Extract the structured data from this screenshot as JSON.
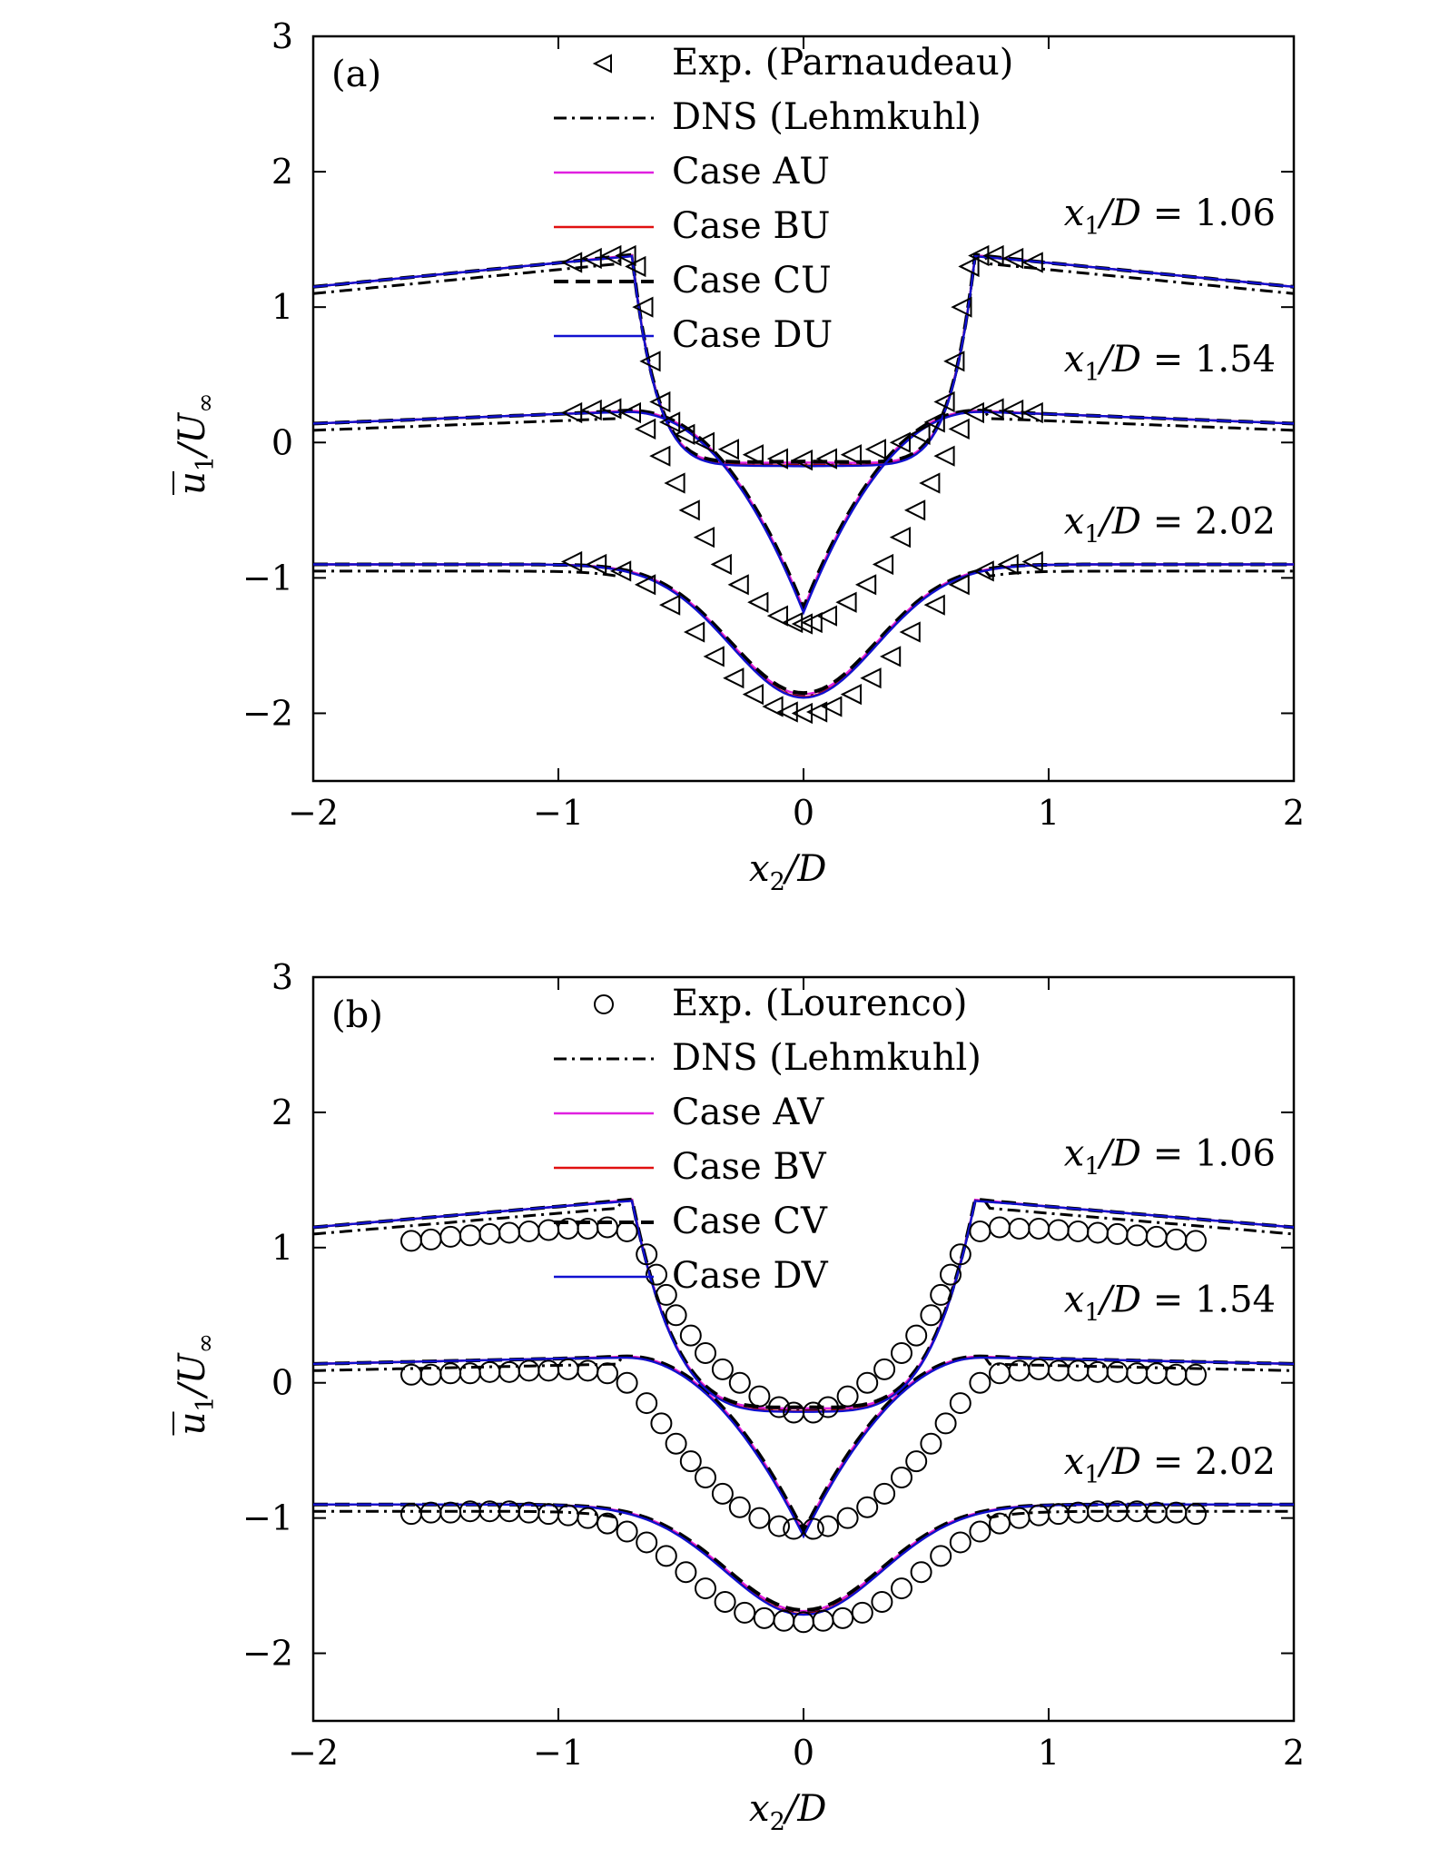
{
  "chart_data": [
    {
      "type": "line",
      "panel_label": "(a)",
      "xlabel": "x2/D",
      "ylabel": "u1/U∞",
      "xlim": [
        -2,
        2
      ],
      "ylim": [
        -2.5,
        3
      ],
      "xticks": [
        -2,
        -1,
        0,
        1,
        2
      ],
      "xtick_labels": [
        "−2",
        "−1",
        "0",
        "1",
        "2"
      ],
      "yticks": [
        -2,
        -1,
        0,
        1,
        2,
        3
      ],
      "ytick_labels": [
        "−2",
        "−1",
        "0",
        "1",
        "2",
        "3"
      ],
      "legend_placement": "top-center",
      "annotations": [
        {
          "text": "x1/D = 1.06",
          "x": 1.9,
          "y": 1.7
        },
        {
          "text": "x1/D = 1.54",
          "x": 1.9,
          "y": 0.62
        },
        {
          "text": "x1/D = 2.02",
          "x": 1.9,
          "y": -0.58
        }
      ],
      "series": [
        {
          "name": "Exp. (Parnaudeau)",
          "style": "triangle-left",
          "color": "#000000",
          "stations": [
            {
              "x1D": 1.06,
              "x": [
                -0.94,
                -0.86,
                -0.78,
                -0.72,
                -0.68,
                -0.65,
                -0.62,
                -0.58,
                -0.54,
                -0.48,
                -0.4,
                -0.3,
                -0.2,
                -0.1,
                0,
                0.1,
                0.2,
                0.3,
                0.4,
                0.48,
                0.54,
                0.58,
                0.62,
                0.65,
                0.68,
                0.72,
                0.78,
                0.86,
                0.94
              ],
              "y": [
                1.33,
                1.36,
                1.38,
                1.38,
                1.3,
                1.0,
                0.6,
                0.3,
                0.15,
                0.06,
                0.0,
                -0.05,
                -0.09,
                -0.12,
                -0.13,
                -0.12,
                -0.09,
                -0.05,
                0.0,
                0.06,
                0.15,
                0.3,
                0.6,
                1.0,
                1.3,
                1.38,
                1.38,
                1.36,
                1.33
              ]
            },
            {
              "x1D": 1.54,
              "x": [
                -0.94,
                -0.86,
                -0.78,
                -0.7,
                -0.64,
                -0.58,
                -0.52,
                -0.46,
                -0.4,
                -0.33,
                -0.26,
                -0.18,
                -0.1,
                -0.04,
                0,
                0.04,
                0.1,
                0.18,
                0.26,
                0.33,
                0.4,
                0.46,
                0.52,
                0.58,
                0.64,
                0.7,
                0.78,
                0.86,
                0.94
              ],
              "y": [
                0.22,
                0.24,
                0.25,
                0.22,
                0.1,
                -0.1,
                -0.3,
                -0.5,
                -0.7,
                -0.9,
                -1.05,
                -1.18,
                -1.28,
                -1.33,
                -1.34,
                -1.33,
                -1.28,
                -1.18,
                -1.05,
                -0.9,
                -0.7,
                -0.5,
                -0.3,
                -0.1,
                0.1,
                0.22,
                0.25,
                0.24,
                0.22
              ]
            },
            {
              "x1D": 2.02,
              "x": [
                -0.94,
                -0.84,
                -0.74,
                -0.64,
                -0.54,
                -0.44,
                -0.36,
                -0.28,
                -0.2,
                -0.12,
                -0.06,
                0,
                0.06,
                0.12,
                0.2,
                0.28,
                0.36,
                0.44,
                0.54,
                0.64,
                0.74,
                0.84,
                0.94
              ],
              "y": [
                -0.88,
                -0.9,
                -0.95,
                -1.05,
                -1.2,
                -1.4,
                -1.58,
                -1.74,
                -1.86,
                -1.95,
                -1.99,
                -2.0,
                -1.99,
                -1.95,
                -1.86,
                -1.74,
                -1.58,
                -1.4,
                -1.2,
                -1.05,
                -0.95,
                -0.9,
                -0.88
              ]
            }
          ]
        },
        {
          "name": "DNS (Lehmkuhl)",
          "style": "dash-dot",
          "color": "#000000"
        },
        {
          "name": "Case AU",
          "style": "solid",
          "color": "#e020e0"
        },
        {
          "name": "Case BU",
          "style": "solid",
          "color": "#e01010"
        },
        {
          "name": "Case CU",
          "style": "dashed",
          "color": "#000000"
        },
        {
          "name": "Case DU",
          "style": "solid",
          "color": "#1010d0"
        }
      ]
    },
    {
      "type": "line",
      "panel_label": "(b)",
      "xlabel": "x2/D",
      "ylabel": "u1/U∞",
      "xlim": [
        -2,
        2
      ],
      "ylim": [
        -2.5,
        3
      ],
      "xticks": [
        -2,
        -1,
        0,
        1,
        2
      ],
      "xtick_labels": [
        "−2",
        "−1",
        "0",
        "1",
        "2"
      ],
      "yticks": [
        -2,
        -1,
        0,
        1,
        2,
        3
      ],
      "ytick_labels": [
        "−2",
        "−1",
        "0",
        "1",
        "2",
        "3"
      ],
      "legend_placement": "top-center",
      "annotations": [
        {
          "text": "x1/D = 1.06",
          "x": 1.9,
          "y": 1.7
        },
        {
          "text": "x1/D = 1.54",
          "x": 1.9,
          "y": 0.62
        },
        {
          "text": "x1/D = 2.02",
          "x": 1.9,
          "y": -0.58
        }
      ],
      "series": [
        {
          "name": "Exp. (Lourenco)",
          "style": "circle",
          "color": "#000000",
          "stations": [
            {
              "x1D": 1.06,
              "x": [
                -1.6,
                -1.52,
                -1.44,
                -1.36,
                -1.28,
                -1.2,
                -1.12,
                -1.04,
                -0.96,
                -0.88,
                -0.8,
                -0.72,
                -0.64,
                -0.6,
                -0.56,
                -0.52,
                -0.46,
                -0.4,
                -0.33,
                -0.26,
                -0.18,
                -0.1,
                -0.04,
                0.04,
                0.1,
                0.18,
                0.26,
                0.33,
                0.4,
                0.46,
                0.52,
                0.56,
                0.6,
                0.64,
                0.72,
                0.8,
                0.88,
                0.96,
                1.04,
                1.12,
                1.2,
                1.28,
                1.36,
                1.44,
                1.52,
                1.6
              ],
              "y": [
                1.05,
                1.06,
                1.08,
                1.09,
                1.1,
                1.11,
                1.12,
                1.13,
                1.14,
                1.14,
                1.15,
                1.12,
                0.95,
                0.8,
                0.65,
                0.5,
                0.35,
                0.22,
                0.1,
                0.0,
                -0.1,
                -0.18,
                -0.22,
                -0.22,
                -0.18,
                -0.1,
                0.0,
                0.1,
                0.22,
                0.35,
                0.5,
                0.65,
                0.8,
                0.95,
                1.12,
                1.15,
                1.14,
                1.14,
                1.13,
                1.12,
                1.11,
                1.1,
                1.09,
                1.08,
                1.06,
                1.05
              ]
            },
            {
              "x1D": 1.54,
              "x": [
                -1.6,
                -1.52,
                -1.44,
                -1.36,
                -1.28,
                -1.2,
                -1.12,
                -1.04,
                -0.96,
                -0.88,
                -0.8,
                -0.72,
                -0.64,
                -0.58,
                -0.52,
                -0.46,
                -0.4,
                -0.33,
                -0.26,
                -0.18,
                -0.1,
                -0.04,
                0.04,
                0.1,
                0.18,
                0.26,
                0.33,
                0.4,
                0.46,
                0.52,
                0.58,
                0.64,
                0.72,
                0.8,
                0.88,
                0.96,
                1.04,
                1.12,
                1.2,
                1.28,
                1.36,
                1.44,
                1.52,
                1.6
              ],
              "y": [
                0.06,
                0.06,
                0.07,
                0.07,
                0.08,
                0.08,
                0.09,
                0.09,
                0.1,
                0.09,
                0.07,
                0.0,
                -0.15,
                -0.3,
                -0.45,
                -0.58,
                -0.7,
                -0.82,
                -0.92,
                -1.0,
                -1.06,
                -1.08,
                -1.08,
                -1.06,
                -1.0,
                -0.92,
                -0.82,
                -0.7,
                -0.58,
                -0.45,
                -0.3,
                -0.15,
                0.0,
                0.07,
                0.09,
                0.1,
                0.09,
                0.09,
                0.08,
                0.08,
                0.07,
                0.07,
                0.06,
                0.06
              ]
            },
            {
              "x1D": 2.02,
              "x": [
                -1.6,
                -1.52,
                -1.44,
                -1.36,
                -1.28,
                -1.2,
                -1.12,
                -1.04,
                -0.96,
                -0.88,
                -0.8,
                -0.72,
                -0.64,
                -0.56,
                -0.48,
                -0.4,
                -0.32,
                -0.24,
                -0.16,
                -0.08,
                0,
                0.08,
                0.16,
                0.24,
                0.32,
                0.4,
                0.48,
                0.56,
                0.64,
                0.72,
                0.8,
                0.88,
                0.96,
                1.04,
                1.12,
                1.2,
                1.28,
                1.36,
                1.44,
                1.52,
                1.6
              ],
              "y": [
                -0.97,
                -0.96,
                -0.96,
                -0.95,
                -0.95,
                -0.95,
                -0.96,
                -0.97,
                -0.98,
                -1.0,
                -1.04,
                -1.1,
                -1.18,
                -1.28,
                -1.4,
                -1.52,
                -1.62,
                -1.7,
                -1.74,
                -1.76,
                -1.77,
                -1.76,
                -1.74,
                -1.7,
                -1.62,
                -1.52,
                -1.4,
                -1.28,
                -1.18,
                -1.1,
                -1.04,
                -1.0,
                -0.98,
                -0.97,
                -0.96,
                -0.95,
                -0.95,
                -0.95,
                -0.96,
                -0.96,
                -0.97
              ]
            }
          ]
        },
        {
          "name": "DNS (Lehmkuhl)",
          "style": "dash-dot",
          "color": "#000000"
        },
        {
          "name": "Case AV",
          "style": "solid",
          "color": "#e020e0"
        },
        {
          "name": "Case BV",
          "style": "solid",
          "color": "#e01010"
        },
        {
          "name": "Case CV",
          "style": "dashed",
          "color": "#000000"
        },
        {
          "name": "Case DV",
          "style": "solid",
          "color": "#1010d0"
        }
      ]
    }
  ]
}
